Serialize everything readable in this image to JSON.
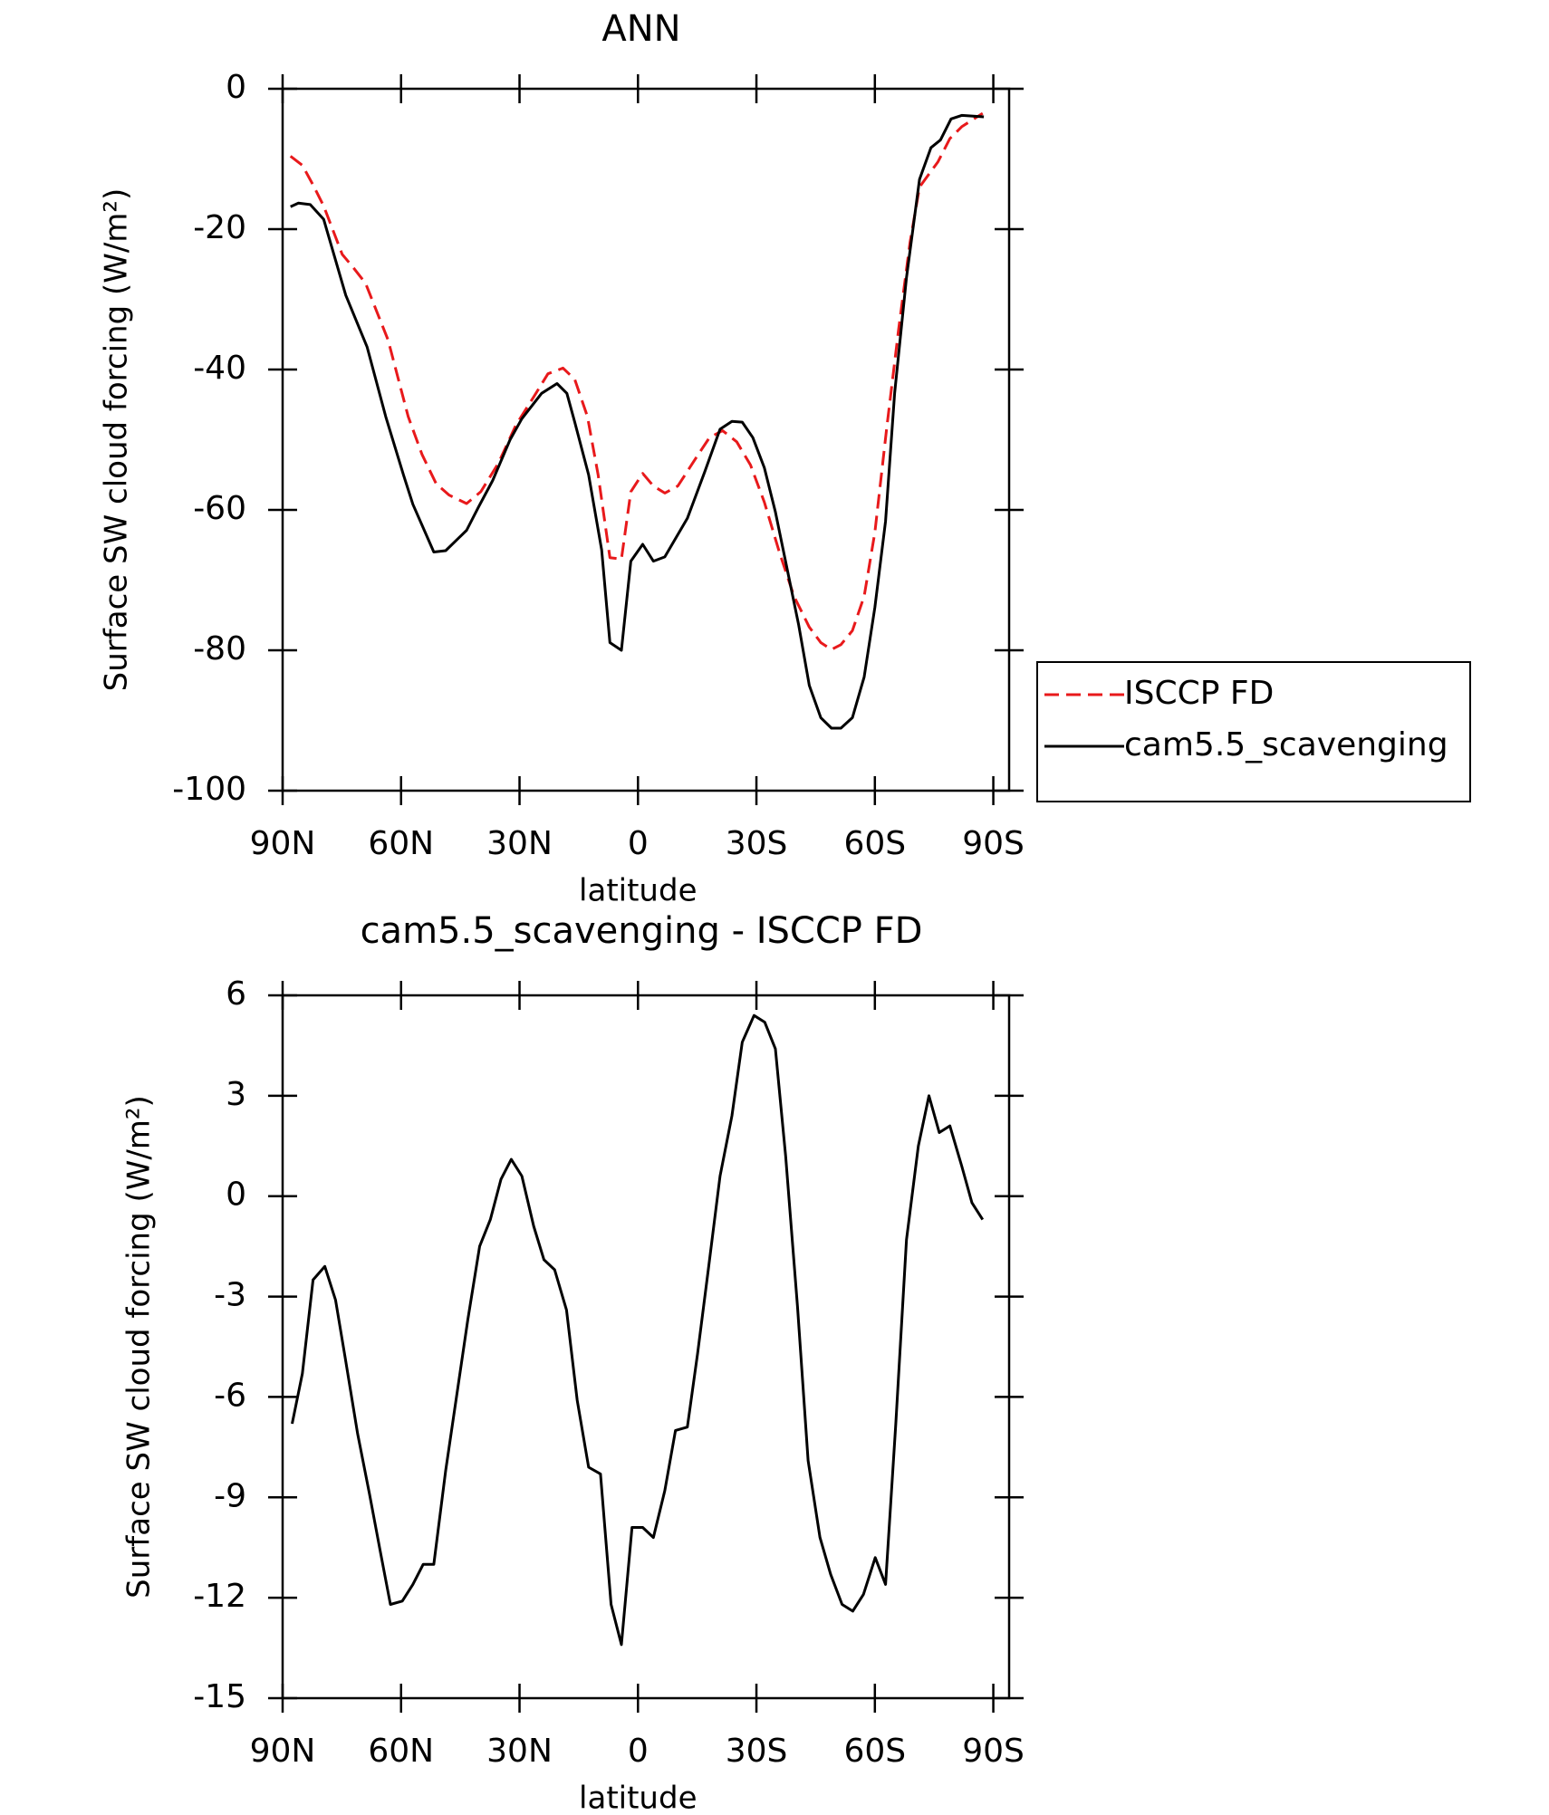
{
  "chart_data": [
    {
      "type": "line",
      "title": "ANN",
      "xlabel": "latitude",
      "ylabel": "Surface SW cloud forcing (W/m²)",
      "xlim": [
        90,
        -94
      ],
      "ylim": [
        -100,
        0
      ],
      "xticks": [
        {
          "value": 90,
          "label": "90N"
        },
        {
          "value": 60,
          "label": "60N"
        },
        {
          "value": 30,
          "label": "30N"
        },
        0,
        {
          "value": -30,
          "label": "30S"
        },
        {
          "value": -60,
          "label": "60S"
        },
        {
          "value": -90,
          "label": "90S"
        }
      ],
      "yticks": [
        -100,
        -80,
        -60,
        -40,
        -20,
        0
      ],
      "legend": "right",
      "series": [
        {
          "name": "ISCCP FD",
          "color": "#e8191b",
          "dash": true,
          "x": [
            88,
            85,
            82.3,
            79.6,
            74.9,
            72.5,
            69,
            63.3,
            58.2,
            54.7,
            51.1,
            47.8,
            43.4,
            39.8,
            35.3,
            30.9,
            26.4,
            22.8,
            19,
            16,
            12.8,
            10.1,
            7.1,
            4.2,
            1.8,
            -1.2,
            -3.9,
            -6.8,
            -10.1,
            -14.8,
            -18.1,
            -21.4,
            -25,
            -28.5,
            -32,
            -35.9,
            -39.5,
            -43.4,
            -46.3,
            -49,
            -51.4,
            -54.3,
            -57.3,
            -60,
            -63,
            -66,
            -68.9,
            -71.3,
            -76,
            -79,
            -82,
            -87.3
          ],
          "values": [
            -9.6,
            -10.9,
            -13.7,
            -16.7,
            -23.6,
            -25.2,
            -27.7,
            -35.8,
            -46.7,
            -52.1,
            -56.3,
            -57.9,
            -59.1,
            -57.4,
            -53.3,
            -47.9,
            -43.9,
            -40.6,
            -39.8,
            -41.4,
            -46.7,
            -55,
            -66.8,
            -67,
            -57.4,
            -54.8,
            -56.6,
            -57.6,
            -56.6,
            -52.5,
            -49.7,
            -48.7,
            -50.3,
            -53.6,
            -58.9,
            -66.2,
            -72.3,
            -76.7,
            -78.9,
            -79.9,
            -79.2,
            -77.2,
            -72.3,
            -63.2,
            -48.3,
            -34.3,
            -21.9,
            -14,
            -10.4,
            -7.1,
            -5.4,
            -3.5
          ]
        },
        {
          "name": "cam5.5_scavenging",
          "color": "#000000",
          "dash": false,
          "x": [
            88,
            86,
            83,
            79.6,
            74,
            68.6,
            63.9,
            59.4,
            57,
            51.7,
            48.7,
            43.4,
            40.4,
            36.8,
            32.4,
            29.4,
            24.4,
            20.5,
            18,
            16,
            12.5,
            9.2,
            7.1,
            4.2,
            1.8,
            -1.2,
            -3.9,
            -6.8,
            -12.5,
            -16.9,
            -20.8,
            -23.8,
            -26.4,
            -29.1,
            -32,
            -34.8,
            -40.7,
            -43.4,
            -46.3,
            -49,
            -51.4,
            -54.3,
            -57.3,
            -60,
            -62.7,
            -65,
            -68,
            -71.3,
            -74.2,
            -76.6,
            -79.3,
            -82,
            -87.6
          ],
          "values": [
            -16.8,
            -16.3,
            -16.5,
            -18.6,
            -29.4,
            -36.8,
            -46.7,
            -55,
            -59.2,
            -66,
            -65.8,
            -62.9,
            -59.6,
            -55.8,
            -50,
            -47,
            -43.4,
            -42,
            -43.4,
            -47.5,
            -55,
            -65.7,
            -78.9,
            -80,
            -67.3,
            -64.9,
            -67.3,
            -66.7,
            -61.2,
            -54.6,
            -48.5,
            -47.4,
            -47.5,
            -49.7,
            -54,
            -60.3,
            -76.4,
            -85,
            -89.6,
            -91.1,
            -91.1,
            -89.6,
            -83.8,
            -73.9,
            -61.6,
            -43.4,
            -26.9,
            -12.9,
            -8.4,
            -7.3,
            -4.3,
            -3.8,
            -4
          ]
        }
      ]
    },
    {
      "type": "line",
      "title": "cam5.5_scavenging - ISCCP FD",
      "xlabel": "latitude",
      "ylabel": "Surface SW cloud forcing (W/m²)",
      "xlim": [
        90,
        -94
      ],
      "ylim": [
        -15,
        6
      ],
      "xticks": [
        {
          "value": 90,
          "label": "90N"
        },
        {
          "value": 60,
          "label": "60N"
        },
        {
          "value": 30,
          "label": "30N"
        },
        0,
        {
          "value": -30,
          "label": "30S"
        },
        {
          "value": -60,
          "label": "60S"
        },
        {
          "value": -90,
          "label": "90S"
        }
      ],
      "yticks": [
        -15,
        -12,
        -9,
        -6,
        -3,
        0,
        3,
        6
      ],
      "series": [
        {
          "color": "#000000",
          "dash": false,
          "x": [
            87.6,
            85,
            82.3,
            79.3,
            76.6,
            74.2,
            71,
            68,
            65.3,
            62.7,
            59.7,
            57,
            54.4,
            51.7,
            48.7,
            43.1,
            40.1,
            37.4,
            34.7,
            32.1,
            29.4,
            26.4,
            23.8,
            21.1,
            18.1,
            15.4,
            12.5,
            9.5,
            6.8,
            4.2,
            1.5,
            -1.2,
            -3.9,
            -6.8,
            -9.5,
            -12.5,
            -15.1,
            -17.8,
            -20.8,
            -23.8,
            -26.4,
            -29.4,
            -32.1,
            -34.8,
            -37.4,
            -40.4,
            -43.1,
            -46.1,
            -48.8,
            -51.7,
            -54.4,
            -57.1,
            -60.1,
            -62.7,
            -65.3,
            -68,
            -71,
            -73.7,
            -76.3,
            -79,
            -82,
            -84.6,
            -87.3
          ],
          "values": [
            -6.8,
            -5.3,
            -2.5,
            -2.1,
            -3.1,
            -4.8,
            -7.1,
            -8.9,
            -10.6,
            -12.2,
            -12.1,
            -11.6,
            -11,
            -11,
            -8.2,
            -3.7,
            -1.5,
            -0.7,
            0.5,
            1.1,
            0.6,
            -0.9,
            -1.9,
            -2.2,
            -3.4,
            -6.1,
            -8.1,
            -8.3,
            -12.2,
            -13.4,
            -9.9,
            -9.9,
            -10.2,
            -8.8,
            -7,
            -6.9,
            -4.7,
            -2.2,
            0.6,
            2.4,
            4.6,
            5.4,
            5.2,
            4.4,
            1.2,
            -3.3,
            -7.9,
            -10.2,
            -11.3,
            -12.2,
            -12.4,
            -11.9,
            -10.8,
            -11.6,
            -6.8,
            -1.3,
            1.5,
            3,
            1.9,
            2.1,
            0.9,
            -0.2,
            -0.7
          ]
        }
      ]
    }
  ]
}
